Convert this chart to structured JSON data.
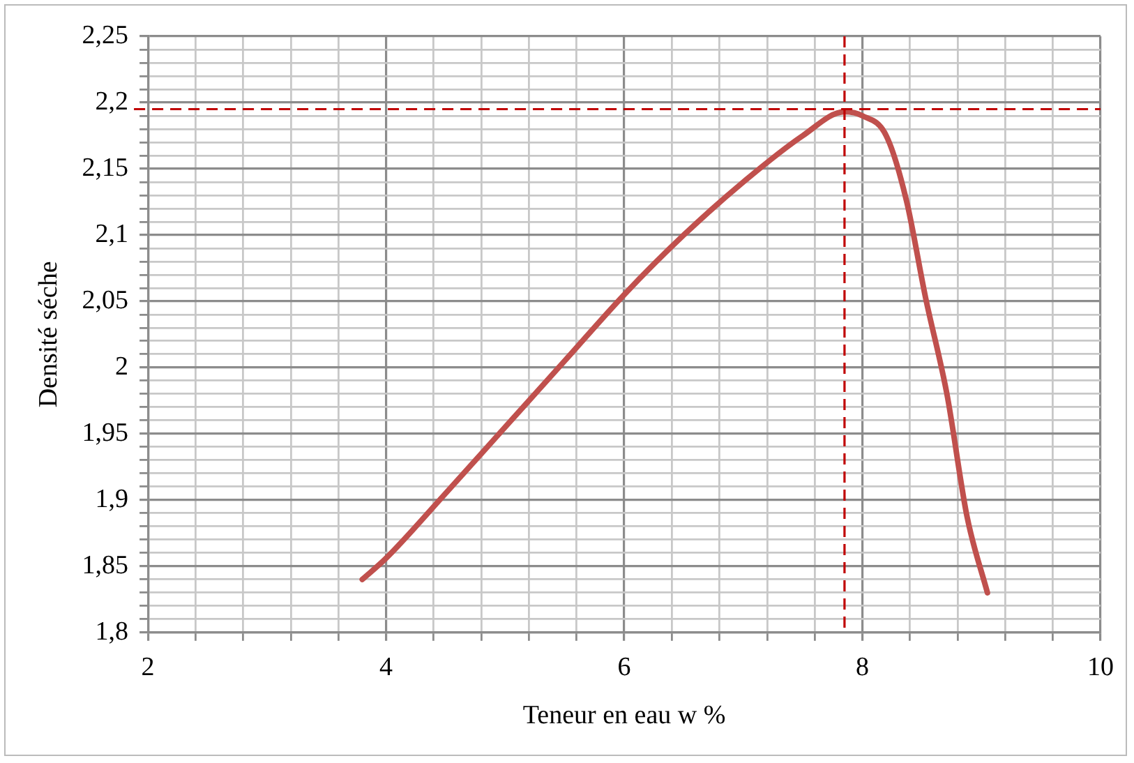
{
  "chart_data": {
    "type": "line",
    "xlabel": "Teneur en eau w %",
    "ylabel": "Densité séche",
    "series": [
      {
        "color": "#c0504d",
        "x": [
          3.8,
          4,
          4.5,
          5,
          5.5,
          6,
          6.5,
          7,
          7.5,
          7.85,
          8.0,
          8.2,
          8.37,
          8.53,
          8.71,
          8.88,
          9.05
        ],
        "values": [
          1.84,
          1.856,
          1.905,
          1.955,
          2.005,
          2.055,
          2.1,
          2.14,
          2.175,
          2.193,
          2.19,
          2.175,
          2.126,
          2.053,
          1.98,
          1.887,
          1.83
        ]
      }
    ],
    "xlim": [
      2,
      10
    ],
    "xticks": [
      2,
      {
        "value": 2.4,
        "label": null
      },
      {
        "value": 2.8,
        "label": null
      },
      {
        "value": 3.2,
        "label": null
      },
      {
        "value": 3.6,
        "label": null
      },
      4,
      {
        "value": 4.4,
        "label": null
      },
      {
        "value": 4.8,
        "label": null
      },
      {
        "value": 5.2,
        "label": null
      },
      {
        "value": 5.6,
        "label": null
      },
      6,
      {
        "value": 6.4,
        "label": null
      },
      {
        "value": 6.8,
        "label": null
      },
      {
        "value": 7.2,
        "label": null
      },
      {
        "value": 7.6,
        "label": null
      },
      8,
      {
        "value": 8.4,
        "label": null
      },
      {
        "value": 8.8,
        "label": null
      },
      {
        "value": 9.2,
        "label": null
      },
      {
        "value": 9.6,
        "label": null
      },
      10
    ],
    "ylim": [
      1.8,
      2.25
    ],
    "yticks": [
      {
        "value": 1.8,
        "label": "1,8"
      },
      {
        "value": 1.81,
        "label": null
      },
      {
        "value": 1.82,
        "label": null
      },
      {
        "value": 1.83,
        "label": null
      },
      {
        "value": 1.84,
        "label": null
      },
      {
        "value": 1.85,
        "label": "1,85"
      },
      {
        "value": 1.86,
        "label": null
      },
      {
        "value": 1.87,
        "label": null
      },
      {
        "value": 1.88,
        "label": null
      },
      {
        "value": 1.89,
        "label": null
      },
      {
        "value": 1.9,
        "label": "1,9"
      },
      {
        "value": 1.91,
        "label": null
      },
      {
        "value": 1.92,
        "label": null
      },
      {
        "value": 1.93,
        "label": null
      },
      {
        "value": 1.94,
        "label": null
      },
      {
        "value": 1.95,
        "label": "1,95"
      },
      {
        "value": 1.96,
        "label": null
      },
      {
        "value": 1.97,
        "label": null
      },
      {
        "value": 1.98,
        "label": null
      },
      {
        "value": 1.99,
        "label": null
      },
      {
        "value": 2,
        "label": "2"
      },
      {
        "value": 2.01,
        "label": null
      },
      {
        "value": 2.02,
        "label": null
      },
      {
        "value": 2.03,
        "label": null
      },
      {
        "value": 2.04,
        "label": null
      },
      {
        "value": 2.05,
        "label": "2,05"
      },
      {
        "value": 2.06,
        "label": null
      },
      {
        "value": 2.07,
        "label": null
      },
      {
        "value": 2.08,
        "label": null
      },
      {
        "value": 2.09,
        "label": null
      },
      {
        "value": 2.1,
        "label": "2,1"
      },
      {
        "value": 2.11,
        "label": null
      },
      {
        "value": 2.12,
        "label": null
      },
      {
        "value": 2.13,
        "label": null
      },
      {
        "value": 2.14,
        "label": null
      },
      {
        "value": 2.15,
        "label": "2,15"
      },
      {
        "value": 2.16,
        "label": null
      },
      {
        "value": 2.17,
        "label": null
      },
      {
        "value": 2.18,
        "label": null
      },
      {
        "value": 2.19,
        "label": null
      },
      {
        "value": 2.2,
        "label": "2,2"
      },
      {
        "value": 2.21,
        "label": null
      },
      {
        "value": 2.22,
        "label": null
      },
      {
        "value": 2.23,
        "label": null
      },
      {
        "value": 2.24,
        "label": null
      },
      {
        "value": 2.25,
        "label": "2,25"
      }
    ],
    "grid": true,
    "legend": false,
    "marker": "none",
    "line_style": "solid",
    "ref_lines": [
      {
        "axis": "x",
        "value": 7.85,
        "color": "#c00000",
        "line_style": "dashed"
      },
      {
        "axis": "y",
        "value": 2.195,
        "color": "#c00000",
        "line_style": "dashed"
      }
    ]
  }
}
